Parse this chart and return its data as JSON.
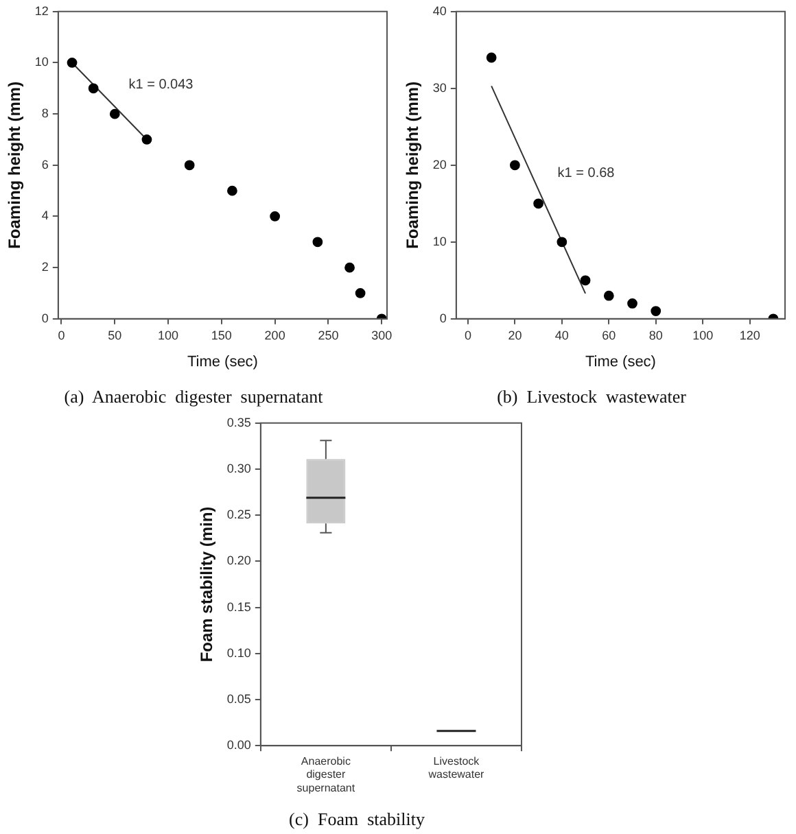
{
  "chart_data": [
    {
      "type": "scatter",
      "title": "(a)  Anaerobic  digester  supernatant",
      "xlabel": "Time (sec)",
      "ylabel": "Foaming height (mm)",
      "xlim": [
        -3,
        305
      ],
      "xticks": [
        0,
        50,
        100,
        150,
        200,
        250,
        300
      ],
      "ylim": [
        0,
        12
      ],
      "yticks": [
        0,
        2,
        4,
        6,
        8,
        10,
        12
      ],
      "series": [
        {
          "color": "#000000",
          "marker": "circle",
          "x": [
            10,
            30,
            50,
            80,
            120,
            160,
            200,
            240,
            270,
            280,
            300
          ],
          "values": [
            10,
            9,
            8,
            7,
            6,
            5,
            4,
            3,
            2,
            1,
            0
          ]
        },
        {
          "type": "line",
          "color": "#333333",
          "marker": "none",
          "x": [
            10,
            80
          ],
          "values": [
            10,
            7
          ]
        }
      ],
      "annotations": [
        "k1 = 0.043"
      ]
    },
    {
      "type": "scatter",
      "title": "(b)  Livestock  wastewater",
      "xlabel": "Time (sec)",
      "ylabel": "Foaming height (mm)",
      "xlim": [
        -5,
        135
      ],
      "xticks": [
        0,
        20,
        40,
        60,
        80,
        100,
        120
      ],
      "ylim": [
        0,
        40
      ],
      "yticks": [
        0,
        10,
        20,
        30,
        40
      ],
      "series": [
        {
          "color": "#000000",
          "marker": "circle",
          "x": [
            10,
            20,
            30,
            40,
            50,
            60,
            70,
            80,
            130
          ],
          "values": [
            34,
            20,
            15,
            10,
            5,
            3,
            2,
            1,
            0
          ]
        },
        {
          "type": "line",
          "color": "#333333",
          "marker": "none",
          "x": [
            10,
            50
          ],
          "values": [
            30.3,
            3.3
          ]
        }
      ],
      "annotations": [
        "k1 = 0.68"
      ]
    },
    {
      "type": "box",
      "title": "(c)  Foam  stability",
      "ylabel": "Foam stability (min)",
      "categories": [
        "Anaerobic digester supernatant",
        "Livestock wastewater"
      ],
      "ylim": [
        0,
        0.35
      ],
      "yticks": [
        {
          "value": 0,
          "label": "0.00"
        },
        {
          "value": 0.05,
          "label": "0.05"
        },
        {
          "value": 0.1,
          "label": "0.10"
        },
        {
          "value": 0.15,
          "label": "0.15"
        },
        {
          "value": 0.2,
          "label": "0.20"
        },
        {
          "value": 0.25,
          "label": "0.25"
        },
        {
          "value": 0.3,
          "label": "0.30"
        },
        {
          "value": 0.35,
          "label": "0.35"
        }
      ],
      "series": [
        {
          "colors": [
            "#c8c8c8",
            "#222222"
          ],
          "boxes": [
            {
              "low": 0.231,
              "q1": 0.241,
              "median": 0.269,
              "q3": 0.311,
              "high": 0.331
            },
            {
              "low": 0.016,
              "q1": 0.016,
              "median": 0.016,
              "q3": 0.016,
              "high": 0.016
            }
          ]
        }
      ]
    }
  ]
}
